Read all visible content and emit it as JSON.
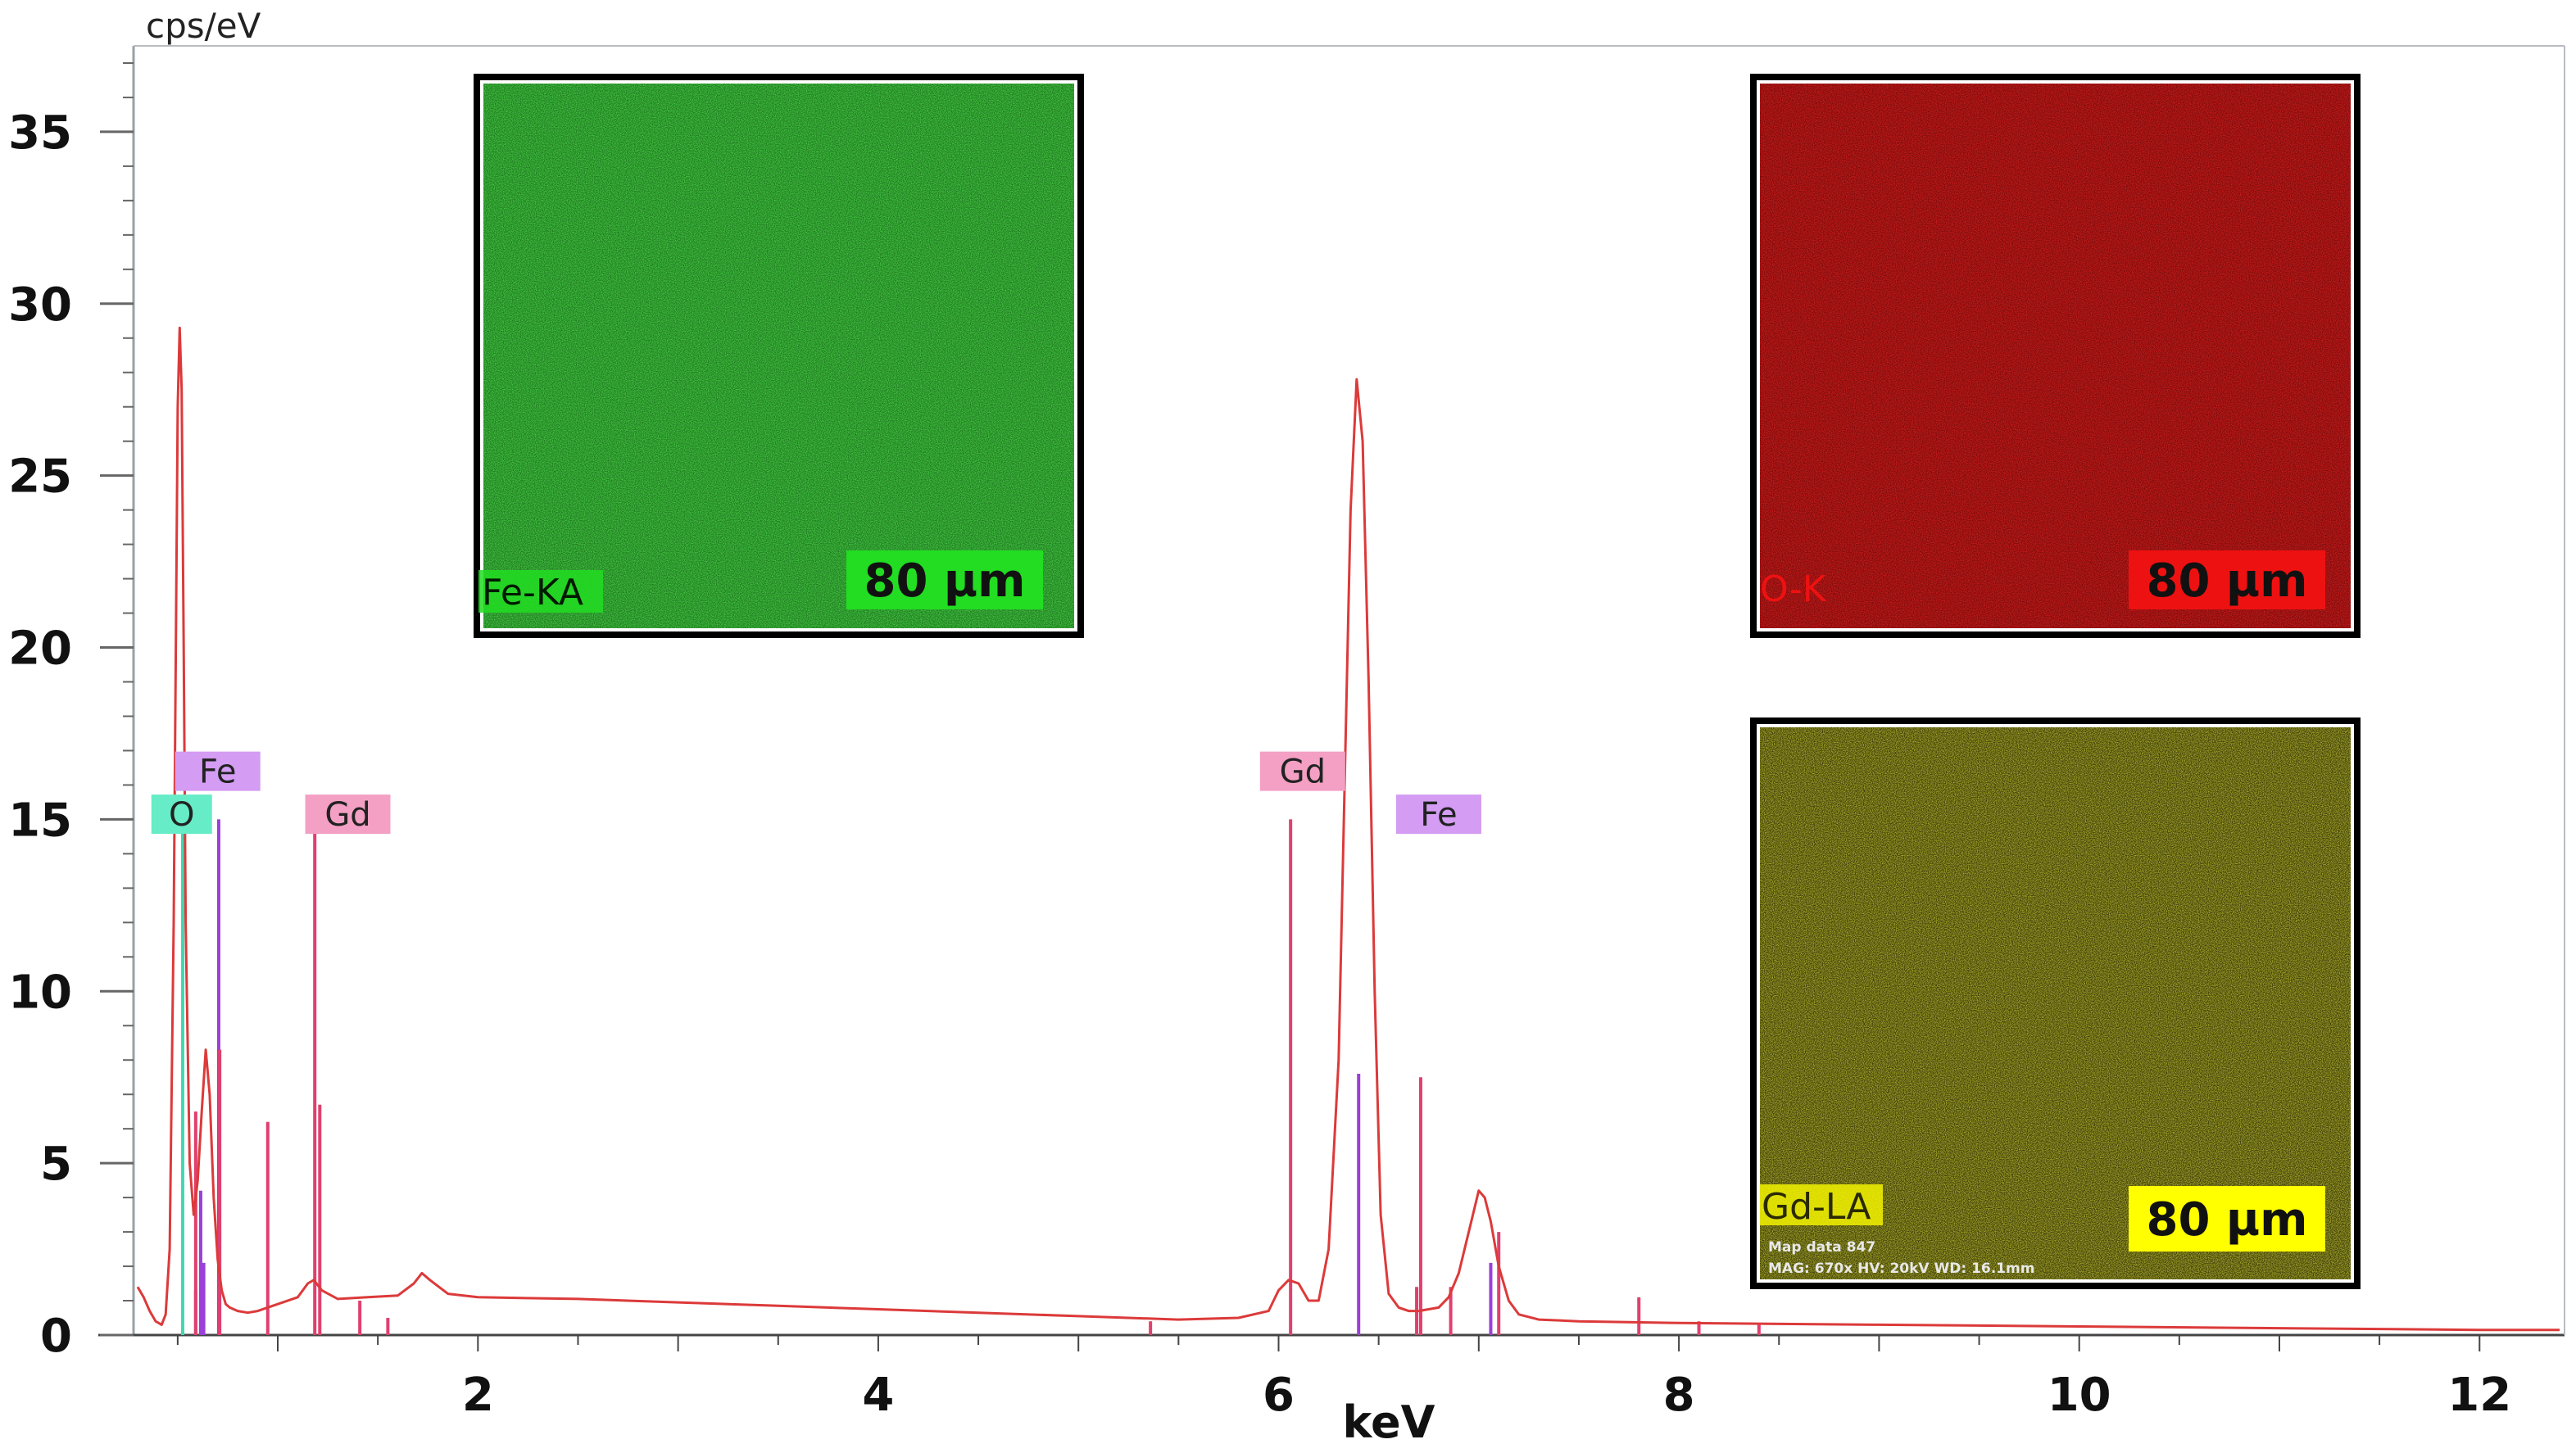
{
  "chart_data": {
    "type": "line",
    "ylabel": "cps/eV",
    "xlabel": "keV",
    "xlim": [
      0.3,
      12.4
    ],
    "ylim": [
      0,
      37.5
    ],
    "x_ticks": [
      2,
      4,
      6,
      8,
      10,
      12
    ],
    "y_ticks": [
      0,
      5,
      10,
      15,
      20,
      25,
      30,
      35
    ],
    "grid": false,
    "spectrum": {
      "x": [
        0.3,
        0.33,
        0.36,
        0.39,
        0.42,
        0.44,
        0.46,
        0.48,
        0.5,
        0.51,
        0.52,
        0.53,
        0.54,
        0.56,
        0.58,
        0.6,
        0.62,
        0.64,
        0.66,
        0.68,
        0.7,
        0.72,
        0.74,
        0.76,
        0.8,
        0.85,
        0.9,
        1.0,
        1.1,
        1.15,
        1.18,
        1.22,
        1.3,
        1.45,
        1.6,
        1.68,
        1.72,
        1.76,
        1.85,
        2.0,
        2.5,
        3.0,
        3.5,
        4.0,
        4.5,
        5.0,
        5.5,
        5.8,
        5.95,
        6.0,
        6.05,
        6.1,
        6.15,
        6.2,
        6.25,
        6.3,
        6.33,
        6.36,
        6.39,
        6.42,
        6.45,
        6.48,
        6.51,
        6.55,
        6.6,
        6.65,
        6.7,
        6.75,
        6.8,
        6.85,
        6.9,
        6.95,
        7.0,
        7.03,
        7.06,
        7.1,
        7.15,
        7.2,
        7.3,
        7.5,
        8.0,
        9.0,
        10.0,
        11.0,
        12.0,
        12.4
      ],
      "y": [
        1.4,
        1.1,
        0.7,
        0.4,
        0.3,
        0.6,
        2.5,
        12.0,
        27.0,
        29.3,
        27.5,
        20.0,
        12.0,
        5.0,
        3.5,
        4.5,
        6.5,
        8.3,
        7.0,
        4.0,
        2.2,
        1.3,
        0.9,
        0.8,
        0.7,
        0.65,
        0.7,
        0.9,
        1.1,
        1.5,
        1.6,
        1.3,
        1.05,
        1.1,
        1.15,
        1.5,
        1.8,
        1.6,
        1.2,
        1.1,
        1.05,
        0.95,
        0.85,
        0.75,
        0.65,
        0.55,
        0.45,
        0.5,
        0.7,
        1.3,
        1.6,
        1.5,
        1.0,
        1.0,
        2.5,
        8.0,
        16.0,
        24.0,
        27.8,
        26.0,
        19.0,
        10.0,
        3.5,
        1.2,
        0.8,
        0.7,
        0.7,
        0.75,
        0.8,
        1.1,
        1.8,
        3.0,
        4.2,
        4.0,
        3.3,
        2.0,
        1.0,
        0.6,
        0.45,
        0.4,
        0.35,
        0.3,
        0.25,
        0.2,
        0.15,
        0.15
      ],
      "color": "#dc3a3a"
    },
    "marker_lines": [
      {
        "element": "O",
        "color": "#3fd8b0",
        "lines": [
          [
            0.525,
            15.0
          ]
        ]
      },
      {
        "element": "Fe",
        "color": "#9b3fd8",
        "lines": [
          [
            0.705,
            15.0
          ],
          [
            0.615,
            4.2
          ],
          [
            0.59,
            1.3
          ],
          [
            6.4,
            7.6
          ],
          [
            7.06,
            2.1
          ],
          [
            0.63,
            2.1
          ]
        ]
      },
      {
        "element": "Gd",
        "color": "#e0406e",
        "lines": [
          [
            1.185,
            15.0
          ],
          [
            6.06,
            15.0
          ],
          [
            0.71,
            8.3
          ],
          [
            0.59,
            6.5
          ],
          [
            0.95,
            6.2
          ],
          [
            1.21,
            6.7
          ],
          [
            6.71,
            7.5
          ],
          [
            6.69,
            1.4
          ],
          [
            6.86,
            1.4
          ],
          [
            7.1,
            3.0
          ],
          [
            7.8,
            1.1
          ],
          [
            1.41,
            1.0
          ],
          [
            1.55,
            0.5
          ],
          [
            5.36,
            0.4
          ],
          [
            8.1,
            0.4
          ],
          [
            8.4,
            0.3
          ]
        ]
      }
    ],
    "peak_labels": [
      {
        "text": "Fe",
        "element": "Fe",
        "x": 0.7,
        "y": 16.4,
        "color": "#d49cf2"
      },
      {
        "text": "O",
        "element": "O",
        "x": 0.52,
        "y": 15.15,
        "color": "#66ecc6"
      },
      {
        "text": "Gd",
        "element": "Gd",
        "x": 1.35,
        "y": 15.15,
        "color": "#f3a0c4"
      },
      {
        "text": "Gd",
        "element": "Gd",
        "x": 6.12,
        "y": 16.4,
        "color": "#f3a0c4"
      },
      {
        "text": "Fe",
        "element": "Fe",
        "x": 6.8,
        "y": 15.15,
        "color": "#d49cf2"
      }
    ]
  },
  "element_maps": [
    {
      "label": "Fe-KA",
      "scale_bar": "80 µm",
      "base_color": "#1e7a1e",
      "speck_color": "#4fd84f",
      "label_color": "#22dd22",
      "badge_color": "#22dd22"
    },
    {
      "label": "O-K",
      "scale_bar": "80 µm",
      "base_color": "#7a0c0c",
      "speck_color": "#e02020",
      "label_color": "#ee1111",
      "badge_color": "#ee1111"
    },
    {
      "label": "Gd-LA",
      "scale_bar": "80 µm",
      "base_color": "#3a3a0a",
      "speck_color": "#c8c832",
      "label_color": "#f2f200",
      "badge_color": "#ffff00",
      "meta_lines": [
        "Map data 847",
        "MAG: 670x  HV: 20kV  WD: 16.1mm"
      ]
    }
  ]
}
